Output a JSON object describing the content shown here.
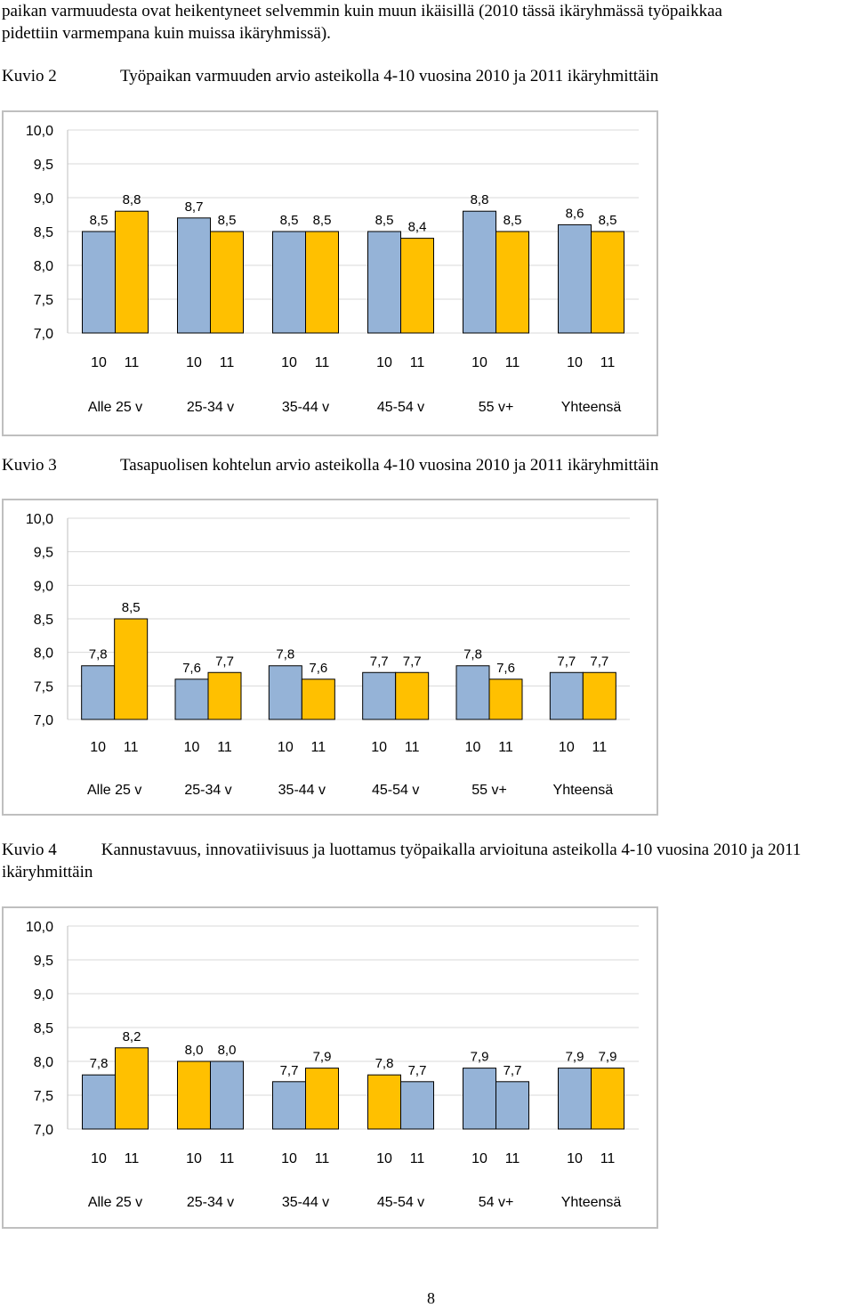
{
  "intro": {
    "line1": "paikan varmuudesta ovat heikentyneet selvemmin kuin muun ikäisillä (2010 tässä ikäryhmässä työpaikkaa",
    "line2": "pidettiin varmempana kuin muissa ikäryhmissä)."
  },
  "captions": [
    {
      "num": "Kuvio 2",
      "title": "Työpaikan varmuuden arvio asteikolla 4-10 vuosina 2010 ja 2011 ikäryhmittäin"
    },
    {
      "num": "Kuvio 3",
      "title": "Tasapuolisen kohtelun arvio asteikolla 4-10 vuosina 2010 ja 2011 ikäryhmittäin"
    },
    {
      "num": "Kuvio 4",
      "title": "Kannustavuus, innovatiivisuus ja luottamus työpaikalla arvioituna asteikolla 4-10 vuosina 2010 ja 2011 ikäryhmittäin"
    }
  ],
  "page_number": "8",
  "colors": {
    "bar_2010": "#95B3D7",
    "bar_2011": "#FFC000",
    "bar_stroke": "#000000",
    "grid": "#d9d9d9",
    "frame": "#bfbfbf"
  },
  "chart_data": [
    {
      "type": "bar",
      "categories": [
        "Alle 25 v",
        "25-34 v",
        "35-44 v",
        "45-54 v",
        "55 v+",
        "Yhteensä"
      ],
      "sub_labels": [
        "10",
        "11"
      ],
      "series": [
        {
          "values": [
            8.5,
            8.7,
            8.5,
            8.5,
            8.8,
            8.6
          ]
        },
        {
          "values": [
            8.8,
            8.5,
            8.5,
            8.4,
            8.5,
            8.5
          ]
        }
      ],
      "ylim": [
        7.0,
        10.0
      ],
      "yticks": [
        "7,0",
        "7,5",
        "8,0",
        "8,5",
        "9,0",
        "9,5",
        "10,0"
      ],
      "colors": [
        "#95B3D7",
        "#FFC000"
      ],
      "grid": true
    },
    {
      "type": "bar",
      "categories": [
        "Alle 25 v",
        "25-34 v",
        "35-44 v",
        "45-54 v",
        "55 v+",
        "Yhteensä"
      ],
      "sub_labels": [
        "10",
        "11"
      ],
      "series": [
        {
          "values": [
            7.8,
            7.6,
            7.8,
            7.7,
            7.8,
            7.7
          ]
        },
        {
          "values": [
            8.5,
            7.7,
            7.6,
            7.7,
            7.6,
            7.7
          ]
        }
      ],
      "ylim": [
        7.0,
        10.0
      ],
      "yticks": [
        "7,0",
        "7,5",
        "8,0",
        "8,5",
        "9,0",
        "9,5",
        "10,0"
      ],
      "colors": [
        "#95B3D7",
        "#FFC000"
      ],
      "grid": true
    },
    {
      "type": "bar",
      "categories": [
        "Alle 25 v",
        "25-34 v",
        "35-44 v",
        "45-54 v",
        "54 v+",
        "Yhteensä"
      ],
      "sub_labels": [
        "10",
        "11"
      ],
      "series": [
        {
          "values": [
            7.8,
            8.0,
            7.7,
            7.8,
            7.9,
            7.9
          ]
        },
        {
          "values": [
            8.2,
            8.0,
            7.9,
            7.7,
            7.7,
            7.9
          ]
        }
      ],
      "bar_colors": [
        [
          "#95B3D7",
          "#FFC000",
          "#95B3D7",
          "#FFC000",
          "#95B3D7",
          "#95B3D7"
        ],
        [
          "#FFC000",
          "#95B3D7",
          "#FFC000",
          "#95B3D7",
          "#95B3D7",
          "#FFC000"
        ]
      ],
      "ylim": [
        7.0,
        10.0
      ],
      "yticks": [
        "7,0",
        "7,5",
        "8,0",
        "8,5",
        "9,0",
        "9,5",
        "10,0"
      ],
      "colors": [
        "#95B3D7",
        "#FFC000"
      ],
      "grid": true
    }
  ]
}
